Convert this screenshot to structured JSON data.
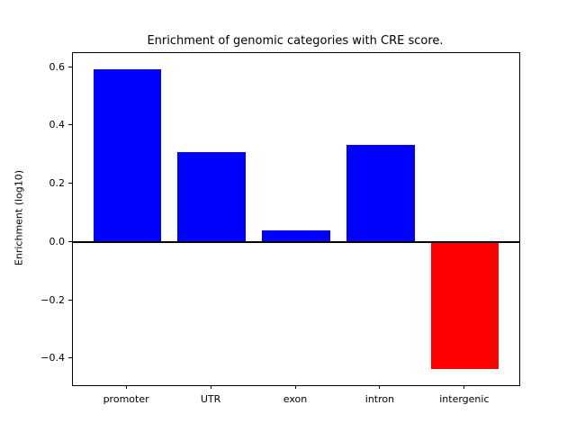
{
  "chart_data": {
    "type": "bar",
    "title": "Enrichment of genomic categories with CRE score.",
    "xlabel": "",
    "ylabel": "Enrichment (log10)",
    "categories": [
      "promoter",
      "UTR",
      "exon",
      "intron",
      "intergenic"
    ],
    "values": [
      0.595,
      0.31,
      0.04,
      0.335,
      -0.435
    ],
    "bar_colors": [
      "#0000ff",
      "#0000ff",
      "#0000ff",
      "#0000ff",
      "#ff0000"
    ],
    "bar_width": 0.8,
    "xlim": [
      -0.64,
      4.64
    ],
    "ylim": [
      -0.49,
      0.65
    ],
    "y_ticks": [
      {
        "value": 0.6,
        "label": "0.6"
      },
      {
        "value": 0.4,
        "label": "0.4"
      },
      {
        "value": 0.2,
        "label": "0.2"
      },
      {
        "value": 0.0,
        "label": "0.0"
      },
      {
        "value": -0.2,
        "label": "−0.2"
      },
      {
        "value": -0.4,
        "label": "−0.4"
      }
    ],
    "zero_line": true,
    "zero_line_color": "#000000",
    "grid": false,
    "legend": null,
    "background_color": "#ffffff"
  }
}
